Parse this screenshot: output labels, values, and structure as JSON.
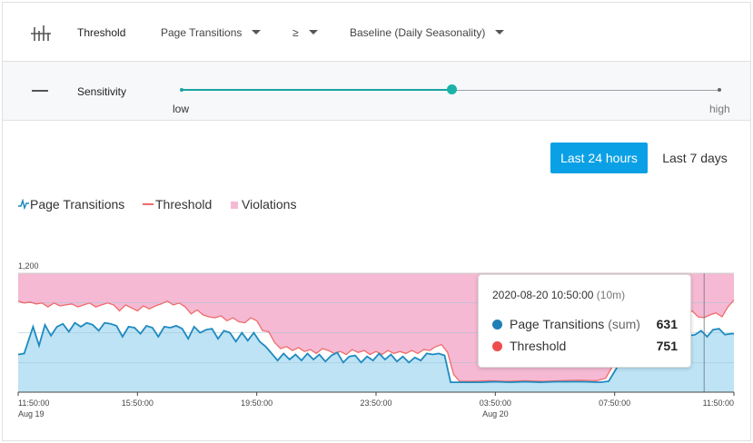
{
  "toolbar": {
    "icon": "bar-chart-icon",
    "label": "Threshold",
    "metric": "Page Transitions",
    "operator": "≥",
    "baseline": "Baseline (Daily Seasonality)"
  },
  "sensitivity": {
    "icon": "minus-icon",
    "label": "Sensitivity",
    "low_label": "low",
    "high_label": "high",
    "value": 0.5
  },
  "time_range": {
    "options": [
      "Last 24 hours",
      "Last 7 days"
    ],
    "selected": "Last 24 hours"
  },
  "legend": {
    "items": [
      {
        "label": "Page Transitions",
        "color": "#1f8ac0",
        "icon": "line-icon"
      },
      {
        "label": "Threshold",
        "color": "#f06b6b",
        "icon": "dash-icon"
      },
      {
        "label": "Violations",
        "color": "#f5b9d3",
        "icon": "square-icon"
      }
    ]
  },
  "tooltip": {
    "time": "2020-08-20 10:50:00",
    "interval": "(10m)",
    "rows": [
      {
        "label": "Page Transitions",
        "suffix": "(sum)",
        "value": "631",
        "color": "#1f7fb6"
      },
      {
        "label": "Threshold",
        "suffix": "",
        "value": "751",
        "color": "#ef4d4d"
      }
    ]
  },
  "chart_data": {
    "type": "area",
    "ylim": [
      0,
      1200
    ],
    "y_tick_labels": [
      "1,200"
    ],
    "x_tick_labels": [
      {
        "time": "11:50:00",
        "date": "Aug 19"
      },
      {
        "time": "15:50:00",
        "date": ""
      },
      {
        "time": "19:50:00",
        "date": ""
      },
      {
        "time": "23:50:00",
        "date": ""
      },
      {
        "time": "03:50:00",
        "date": "Aug 20"
      },
      {
        "time": "07:50:00",
        "date": ""
      },
      {
        "time": "11:50:00",
        "date": ""
      }
    ],
    "x_start_hours": 0,
    "x_end_hours": 24,
    "cursor_hours": 23.0,
    "series": [
      {
        "name": "Page Transitions",
        "color": "#1f8ac0",
        "fill": "#bde3f4",
        "points": [
          [
            0.0,
            380
          ],
          [
            0.2,
            390
          ],
          [
            0.5,
            660
          ],
          [
            0.7,
            470
          ],
          [
            0.9,
            680
          ],
          [
            1.1,
            570
          ],
          [
            1.3,
            660
          ],
          [
            1.5,
            690
          ],
          [
            1.7,
            610
          ],
          [
            1.9,
            700
          ],
          [
            2.1,
            660
          ],
          [
            2.3,
            700
          ],
          [
            2.5,
            680
          ],
          [
            2.7,
            620
          ],
          [
            2.9,
            700
          ],
          [
            3.1,
            690
          ],
          [
            3.3,
            670
          ],
          [
            3.5,
            560
          ],
          [
            3.7,
            660
          ],
          [
            3.9,
            650
          ],
          [
            4.1,
            590
          ],
          [
            4.3,
            670
          ],
          [
            4.5,
            650
          ],
          [
            4.7,
            560
          ],
          [
            4.9,
            660
          ],
          [
            5.1,
            650
          ],
          [
            5.3,
            670
          ],
          [
            5.5,
            640
          ],
          [
            5.7,
            540
          ],
          [
            5.9,
            660
          ],
          [
            6.1,
            600
          ],
          [
            6.3,
            630
          ],
          [
            6.5,
            640
          ],
          [
            6.7,
            540
          ],
          [
            6.9,
            620
          ],
          [
            7.1,
            600
          ],
          [
            7.3,
            510
          ],
          [
            7.5,
            600
          ],
          [
            7.7,
            520
          ],
          [
            7.9,
            600
          ],
          [
            8.1,
            510
          ],
          [
            8.3,
            460
          ],
          [
            8.5,
            390
          ],
          [
            8.7,
            320
          ],
          [
            8.9,
            390
          ],
          [
            9.1,
            330
          ],
          [
            9.3,
            380
          ],
          [
            9.5,
            320
          ],
          [
            9.7,
            390
          ],
          [
            9.9,
            330
          ],
          [
            10.1,
            380
          ],
          [
            10.3,
            310
          ],
          [
            10.5,
            370
          ],
          [
            10.7,
            400
          ],
          [
            10.9,
            300
          ],
          [
            11.1,
            360
          ],
          [
            11.3,
            370
          ],
          [
            11.5,
            300
          ],
          [
            11.7,
            360
          ],
          [
            11.9,
            320
          ],
          [
            12.1,
            390
          ],
          [
            12.3,
            330
          ],
          [
            12.5,
            380
          ],
          [
            12.7,
            310
          ],
          [
            12.9,
            360
          ],
          [
            13.1,
            300
          ],
          [
            13.3,
            350
          ],
          [
            13.5,
            320
          ],
          [
            13.7,
            390
          ],
          [
            13.9,
            380
          ],
          [
            14.1,
            390
          ],
          [
            14.3,
            370
          ],
          [
            14.5,
            100
          ],
          [
            14.7,
            100
          ],
          [
            15.0,
            100
          ],
          [
            15.5,
            100
          ],
          [
            16.0,
            105
          ],
          [
            16.5,
            100
          ],
          [
            17.0,
            105
          ],
          [
            17.5,
            100
          ],
          [
            18.0,
            105
          ],
          [
            18.5,
            105
          ],
          [
            19.0,
            105
          ],
          [
            19.5,
            100
          ],
          [
            19.8,
            110
          ],
          [
            20.1,
            260
          ],
          [
            20.3,
            430
          ],
          [
            20.5,
            600
          ],
          [
            20.7,
            610
          ],
          [
            20.9,
            630
          ],
          [
            21.1,
            580
          ],
          [
            21.3,
            610
          ],
          [
            21.5,
            590
          ],
          [
            21.7,
            610
          ],
          [
            21.9,
            560
          ],
          [
            22.1,
            610
          ],
          [
            22.3,
            600
          ],
          [
            22.5,
            570
          ],
          [
            22.7,
            580
          ],
          [
            22.9,
            620
          ],
          [
            23.1,
            560
          ],
          [
            23.3,
            630
          ],
          [
            23.5,
            640
          ],
          [
            23.7,
            580
          ],
          [
            23.9,
            590
          ],
          [
            24.0,
            590
          ]
        ]
      },
      {
        "name": "Threshold",
        "color": "#f06b6b",
        "points": [
          [
            0.0,
            920
          ],
          [
            0.2,
            900
          ],
          [
            0.4,
            910
          ],
          [
            0.6,
            890
          ],
          [
            0.8,
            900
          ],
          [
            1.0,
            860
          ],
          [
            1.2,
            900
          ],
          [
            1.4,
            870
          ],
          [
            1.6,
            880
          ],
          [
            1.8,
            890
          ],
          [
            2.0,
            860
          ],
          [
            2.2,
            880
          ],
          [
            2.4,
            900
          ],
          [
            2.6,
            860
          ],
          [
            2.8,
            880
          ],
          [
            3.0,
            900
          ],
          [
            3.2,
            880
          ],
          [
            3.4,
            820
          ],
          [
            3.6,
            880
          ],
          [
            3.8,
            850
          ],
          [
            4.0,
            820
          ],
          [
            4.2,
            870
          ],
          [
            4.4,
            840
          ],
          [
            4.6,
            870
          ],
          [
            4.8,
            890
          ],
          [
            5.0,
            920
          ],
          [
            5.2,
            880
          ],
          [
            5.4,
            900
          ],
          [
            5.6,
            860
          ],
          [
            5.8,
            790
          ],
          [
            6.0,
            830
          ],
          [
            6.2,
            780
          ],
          [
            6.4,
            760
          ],
          [
            6.6,
            750
          ],
          [
            6.8,
            770
          ],
          [
            7.0,
            720
          ],
          [
            7.2,
            750
          ],
          [
            7.4,
            710
          ],
          [
            7.6,
            700
          ],
          [
            7.8,
            750
          ],
          [
            8.0,
            720
          ],
          [
            8.2,
            620
          ],
          [
            8.4,
            610
          ],
          [
            8.6,
            500
          ],
          [
            8.8,
            440
          ],
          [
            9.0,
            460
          ],
          [
            9.2,
            420
          ],
          [
            9.4,
            450
          ],
          [
            9.6,
            410
          ],
          [
            9.8,
            430
          ],
          [
            10.0,
            390
          ],
          [
            10.2,
            440
          ],
          [
            10.4,
            420
          ],
          [
            10.6,
            390
          ],
          [
            10.8,
            410
          ],
          [
            11.0,
            380
          ],
          [
            11.2,
            430
          ],
          [
            11.4,
            400
          ],
          [
            11.6,
            420
          ],
          [
            11.8,
            380
          ],
          [
            12.0,
            410
          ],
          [
            12.2,
            380
          ],
          [
            12.4,
            420
          ],
          [
            12.6,
            390
          ],
          [
            12.8,
            410
          ],
          [
            13.0,
            390
          ],
          [
            13.2,
            420
          ],
          [
            13.4,
            390
          ],
          [
            13.6,
            430
          ],
          [
            13.8,
            420
          ],
          [
            14.0,
            460
          ],
          [
            14.2,
            480
          ],
          [
            14.4,
            400
          ],
          [
            14.6,
            180
          ],
          [
            14.8,
            110
          ],
          [
            15.2,
            110
          ],
          [
            15.8,
            115
          ],
          [
            16.4,
            110
          ],
          [
            17.0,
            115
          ],
          [
            17.6,
            110
          ],
          [
            18.2,
            115
          ],
          [
            18.8,
            120
          ],
          [
            19.4,
            115
          ],
          [
            19.7,
            140
          ],
          [
            20.0,
            300
          ],
          [
            20.2,
            520
          ],
          [
            20.4,
            700
          ],
          [
            20.6,
            760
          ],
          [
            20.8,
            790
          ],
          [
            21.0,
            810
          ],
          [
            21.2,
            790
          ],
          [
            21.4,
            830
          ],
          [
            21.6,
            800
          ],
          [
            21.8,
            820
          ],
          [
            22.0,
            790
          ],
          [
            22.2,
            780
          ],
          [
            22.4,
            800
          ],
          [
            22.6,
            820
          ],
          [
            22.8,
            760
          ],
          [
            23.0,
            751
          ],
          [
            23.2,
            780
          ],
          [
            23.4,
            800
          ],
          [
            23.6,
            760
          ],
          [
            23.8,
            860
          ],
          [
            24.0,
            930
          ]
        ]
      }
    ]
  }
}
